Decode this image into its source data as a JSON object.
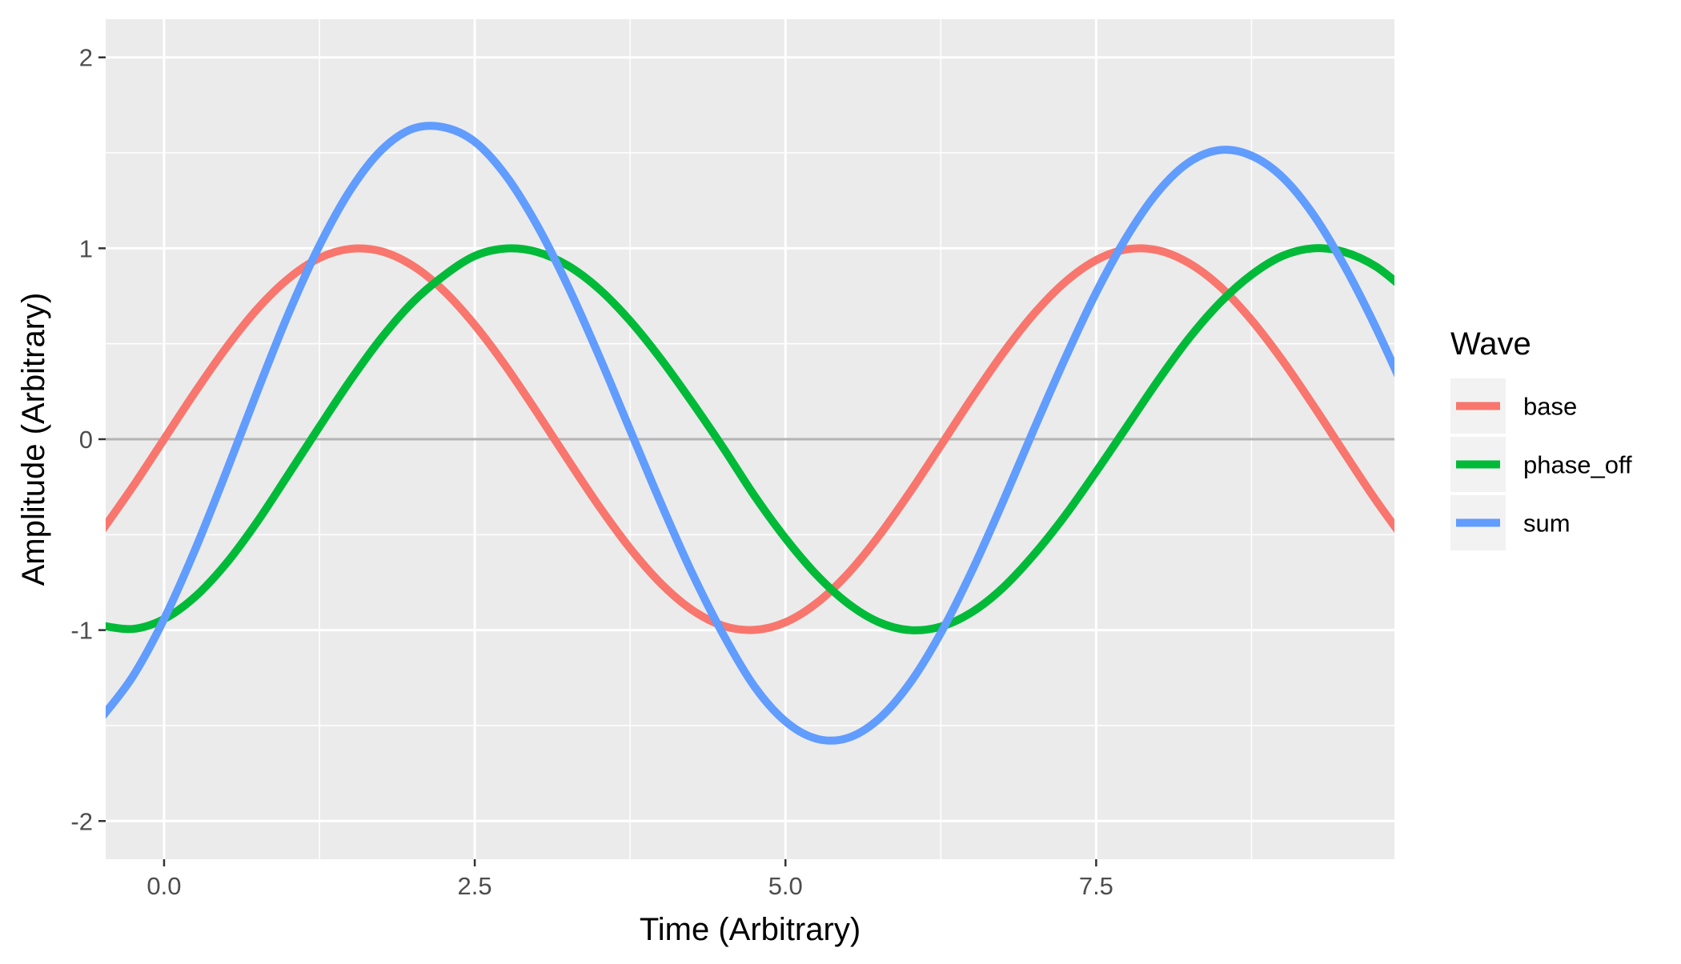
{
  "chart_data": {
    "type": "line",
    "title": "",
    "xlabel": "Time (Arbitrary)",
    "ylabel": "Amplitude (Arbitrary)",
    "xlim": [
      -0.47,
      9.9
    ],
    "ylim": [
      -2.2,
      2.2
    ],
    "x_ticks": [
      0.0,
      2.5,
      5.0,
      7.5
    ],
    "x_tick_labels": [
      "0.0",
      "2.5",
      "5.0",
      "7.5"
    ],
    "y_ticks": [
      -2,
      -1,
      0,
      1,
      2
    ],
    "y_tick_labels": [
      "-2",
      "-1",
      "0",
      "1",
      "2"
    ],
    "grid": true,
    "zero_line": true,
    "legend": {
      "title": "Wave",
      "position": "right"
    },
    "x_step": 0.25,
    "series": [
      {
        "name": "base",
        "color": "#F8766D",
        "x": [
          -0.5,
          -0.25,
          0.0,
          0.25,
          0.5,
          0.75,
          1.0,
          1.25,
          1.5,
          1.75,
          2.0,
          2.25,
          2.5,
          2.75,
          3.0,
          3.25,
          3.5,
          3.75,
          4.0,
          4.25,
          4.5,
          4.75,
          5.0,
          5.25,
          5.5,
          5.75,
          6.0,
          6.25,
          6.5,
          6.75,
          7.0,
          7.25,
          7.5,
          7.75,
          8.0,
          8.25,
          8.5,
          8.75,
          9.0,
          9.25,
          9.5,
          9.75,
          10.0
        ],
        "values": [
          -0.479,
          -0.247,
          0.0,
          0.247,
          0.479,
          0.682,
          0.841,
          0.949,
          0.997,
          0.984,
          0.909,
          0.778,
          0.598,
          0.382,
          0.141,
          -0.108,
          -0.351,
          -0.572,
          -0.757,
          -0.895,
          -0.978,
          -0.999,
          -0.959,
          -0.859,
          -0.706,
          -0.508,
          -0.279,
          -0.033,
          0.215,
          0.45,
          0.657,
          0.823,
          0.938,
          0.995,
          0.989,
          0.921,
          0.798,
          0.624,
          0.412,
          0.174,
          -0.075,
          -0.319,
          -0.544
        ]
      },
      {
        "name": "phase_off",
        "color": "#00BA38",
        "x": [
          -0.5,
          -0.25,
          0.0,
          0.25,
          0.5,
          0.75,
          1.0,
          1.25,
          1.5,
          1.75,
          2.0,
          2.25,
          2.5,
          2.75,
          3.0,
          3.25,
          3.5,
          3.75,
          4.0,
          4.25,
          4.5,
          4.75,
          5.0,
          5.25,
          5.5,
          5.75,
          6.0,
          6.25,
          6.5,
          6.75,
          7.0,
          7.25,
          7.5,
          7.75,
          8.0,
          8.25,
          8.5,
          8.75,
          9.0,
          9.25,
          9.5,
          9.75,
          10.0
        ],
        "values": [
          -0.977,
          -0.994,
          -0.942,
          -0.825,
          -0.651,
          -0.432,
          -0.185,
          0.065,
          0.309,
          0.531,
          0.717,
          0.856,
          0.96,
          0.999,
          0.981,
          0.909,
          0.787,
          0.62,
          0.418,
          0.192,
          -0.046,
          -0.296,
          -0.519,
          -0.71,
          -0.859,
          -0.958,
          -1.0,
          -0.982,
          -0.906,
          -0.778,
          -0.604,
          -0.4,
          -0.17,
          0.069,
          0.309,
          0.531,
          0.717,
          0.861,
          0.96,
          1.0,
          0.98,
          0.905,
          0.775
        ]
      },
      {
        "name": "sum",
        "color": "#619CFF",
        "x": [
          -0.5,
          -0.25,
          0.0,
          0.25,
          0.5,
          0.75,
          1.0,
          1.25,
          1.5,
          1.75,
          2.0,
          2.25,
          2.5,
          2.75,
          3.0,
          3.25,
          3.5,
          3.75,
          4.0,
          4.25,
          4.5,
          4.75,
          5.0,
          5.25,
          5.5,
          5.75,
          6.0,
          6.25,
          6.5,
          6.75,
          7.0,
          7.25,
          7.5,
          7.75,
          8.0,
          8.25,
          8.5,
          8.75,
          9.0,
          9.25,
          9.5,
          9.75,
          10.0
        ],
        "values": [
          -1.456,
          -1.241,
          -0.942,
          -0.578,
          -0.172,
          0.25,
          0.656,
          1.014,
          1.306,
          1.515,
          1.626,
          1.634,
          1.558,
          1.381,
          1.122,
          0.801,
          0.436,
          0.048,
          -0.339,
          -0.703,
          -1.024,
          -1.295,
          -1.478,
          -1.569,
          -1.565,
          -1.466,
          -1.279,
          -1.015,
          -0.691,
          -0.328,
          0.053,
          0.423,
          0.768,
          1.064,
          1.298,
          1.452,
          1.515,
          1.485,
          1.372,
          1.174,
          0.905,
          0.586,
          0.231
        ]
      }
    ]
  }
}
